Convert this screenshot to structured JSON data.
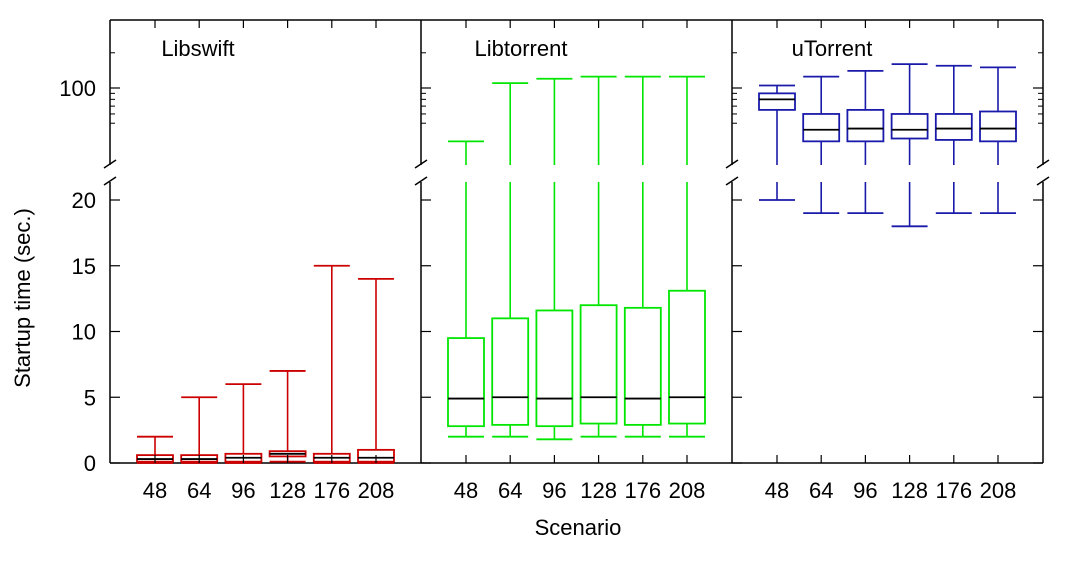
{
  "chart_data": {
    "type": "box",
    "xlabel": "Scenario",
    "ylabel": "Startup time (sec.)",
    "y_axis_lower": {
      "range": [
        0,
        21
      ],
      "ticks": [
        0,
        5,
        10,
        15,
        20
      ]
    },
    "y_axis_upper": {
      "scale": "log",
      "ticks": [
        100
      ]
    },
    "categories": [
      "48",
      "64",
      "96",
      "128",
      "176",
      "208"
    ],
    "panels": [
      {
        "name": "Libswift",
        "color": "#cc0000",
        "boxes": [
          {
            "scenario": "48",
            "min": 0.0,
            "q1": 0.1,
            "median": 0.3,
            "q3": 0.6,
            "max": 2
          },
          {
            "scenario": "64",
            "min": 0.0,
            "q1": 0.1,
            "median": 0.3,
            "q3": 0.6,
            "max": 5
          },
          {
            "scenario": "96",
            "min": 0.0,
            "q1": 0.1,
            "median": 0.4,
            "q3": 0.7,
            "max": 6
          },
          {
            "scenario": "128",
            "min": 0.1,
            "q1": 0.5,
            "median": 0.7,
            "q3": 0.9,
            "max": 7
          },
          {
            "scenario": "176",
            "min": 0.0,
            "q1": 0.1,
            "median": 0.4,
            "q3": 0.7,
            "max": 15
          },
          {
            "scenario": "208",
            "min": 0.0,
            "q1": 0.1,
            "median": 0.4,
            "q3": 1.0,
            "max": 14
          }
        ]
      },
      {
        "name": "Libtorrent",
        "color": "#00e600",
        "boxes": [
          {
            "scenario": "48",
            "min": 2.0,
            "q1": 2.8,
            "median": 4.9,
            "q3": 9.5,
            "max": 35
          },
          {
            "scenario": "64",
            "min": 2.0,
            "q1": 2.9,
            "median": 5.0,
            "q3": 11.0,
            "max": 110
          },
          {
            "scenario": "96",
            "min": 1.8,
            "q1": 2.8,
            "median": 4.9,
            "q3": 11.6,
            "max": 120
          },
          {
            "scenario": "128",
            "min": 2.0,
            "q1": 3.0,
            "median": 5.0,
            "q3": 12.0,
            "max": 125
          },
          {
            "scenario": "176",
            "min": 2.0,
            "q1": 2.9,
            "median": 4.9,
            "q3": 11.8,
            "max": 125
          },
          {
            "scenario": "208",
            "min": 2.0,
            "q1": 3.0,
            "median": 5.0,
            "q3": 13.1,
            "max": 125
          }
        ]
      },
      {
        "name": "uTorrent",
        "color": "#1a1aaa",
        "boxes": [
          {
            "scenario": "48",
            "min": 20,
            "q1": 65,
            "median": 80,
            "q3": 90,
            "max": 105
          },
          {
            "scenario": "64",
            "min": 19,
            "q1": 35,
            "median": 44,
            "q3": 60,
            "max": 125
          },
          {
            "scenario": "96",
            "min": 19,
            "q1": 35,
            "median": 45,
            "q3": 65,
            "max": 140
          },
          {
            "scenario": "128",
            "min": 18,
            "q1": 37,
            "median": 44,
            "q3": 60,
            "max": 160
          },
          {
            "scenario": "176",
            "min": 19,
            "q1": 36,
            "median": 45,
            "q3": 60,
            "max": 155
          },
          {
            "scenario": "208",
            "min": 19,
            "q1": 35,
            "median": 45,
            "q3": 63,
            "max": 150
          }
        ]
      }
    ]
  }
}
